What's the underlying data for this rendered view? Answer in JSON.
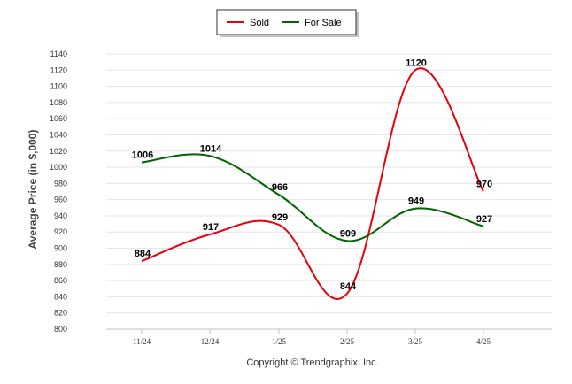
{
  "chart_data": {
    "type": "line",
    "ylabel": "Average Price (in $,000)",
    "xlabel": "",
    "categories": [
      "11/24",
      "12/24",
      "1/25",
      "2/25",
      "3/25",
      "4/25"
    ],
    "ylim": [
      800,
      1140
    ],
    "yticks": [
      800,
      820,
      840,
      860,
      880,
      900,
      920,
      940,
      960,
      980,
      1000,
      1020,
      1040,
      1060,
      1080,
      1100,
      1120,
      1140
    ],
    "grid": true,
    "legend_position": "top-center",
    "series": [
      {
        "name": "Sold",
        "color": "#e8000b",
        "values": [
          884,
          917,
          929,
          844,
          1120,
          970
        ]
      },
      {
        "name": "For Sale",
        "color": "#006400",
        "values": [
          1006,
          1014,
          966,
          909,
          949,
          927
        ]
      }
    ],
    "credit": "Copyright © Trendgraphix, Inc."
  }
}
